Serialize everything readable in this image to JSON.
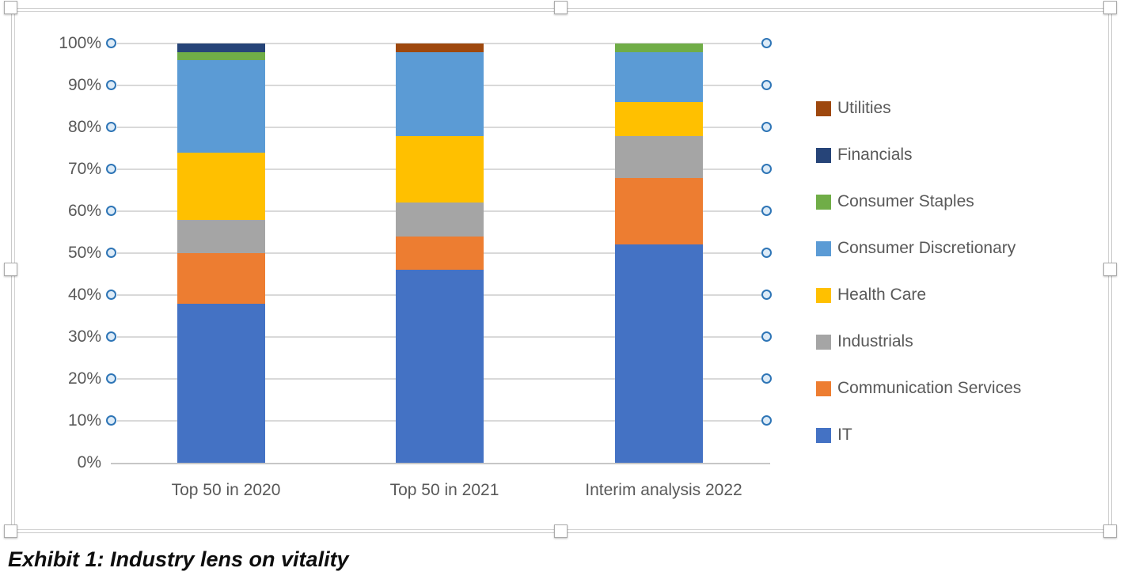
{
  "caption": "Exhibit 1: Industry lens on vitality",
  "selection": {
    "frame_visible": true,
    "handle_count": 8,
    "gridlines_selected": true,
    "gridline_handle_border_color": "#2E75B6",
    "gridline_handle_fill_color": "#DDEBF7"
  },
  "chart_data": {
    "type": "bar",
    "subtype": "100%-stacked-column",
    "title": "",
    "xlabel": "",
    "ylabel": "",
    "grid": true,
    "legend_position": "right",
    "ylim": [
      0,
      100
    ],
    "y_axis": {
      "unit": "percent",
      "step": 10,
      "tick_labels_bottom_to_top": [
        "0%",
        "10%",
        "20%",
        "30%",
        "40%",
        "50%",
        "60%",
        "70%",
        "80%",
        "90%",
        "100%"
      ]
    },
    "categories": [
      "Top 50 in 2020",
      "Top 50 in 2021",
      "Interim analysis 2022"
    ],
    "series_bottom_to_top": [
      {
        "name": "IT",
        "color": "#4472C4",
        "values": [
          38,
          46,
          52
        ]
      },
      {
        "name": "Communication Services",
        "color": "#ED7D31",
        "values": [
          12,
          8,
          16
        ]
      },
      {
        "name": "Industrials",
        "color": "#A5A5A5",
        "values": [
          8,
          8,
          10
        ]
      },
      {
        "name": "Health Care",
        "color": "#FFC000",
        "values": [
          16,
          16,
          8
        ]
      },
      {
        "name": "Consumer Discretionary",
        "color": "#5B9BD5",
        "values": [
          22,
          20,
          12
        ]
      },
      {
        "name": "Consumer Staples",
        "color": "#70AD47",
        "values": [
          2,
          0,
          2
        ]
      },
      {
        "name": "Financials",
        "color": "#264478",
        "values": [
          2,
          0,
          0
        ]
      },
      {
        "name": "Utilities",
        "color": "#9E480E",
        "values": [
          0,
          2,
          0
        ]
      }
    ],
    "legend_order_top_to_bottom": [
      "Utilities",
      "Financials",
      "Consumer Staples",
      "Consumer Discretionary",
      "Health Care",
      "Industrials",
      "Communication Services",
      "IT"
    ]
  }
}
